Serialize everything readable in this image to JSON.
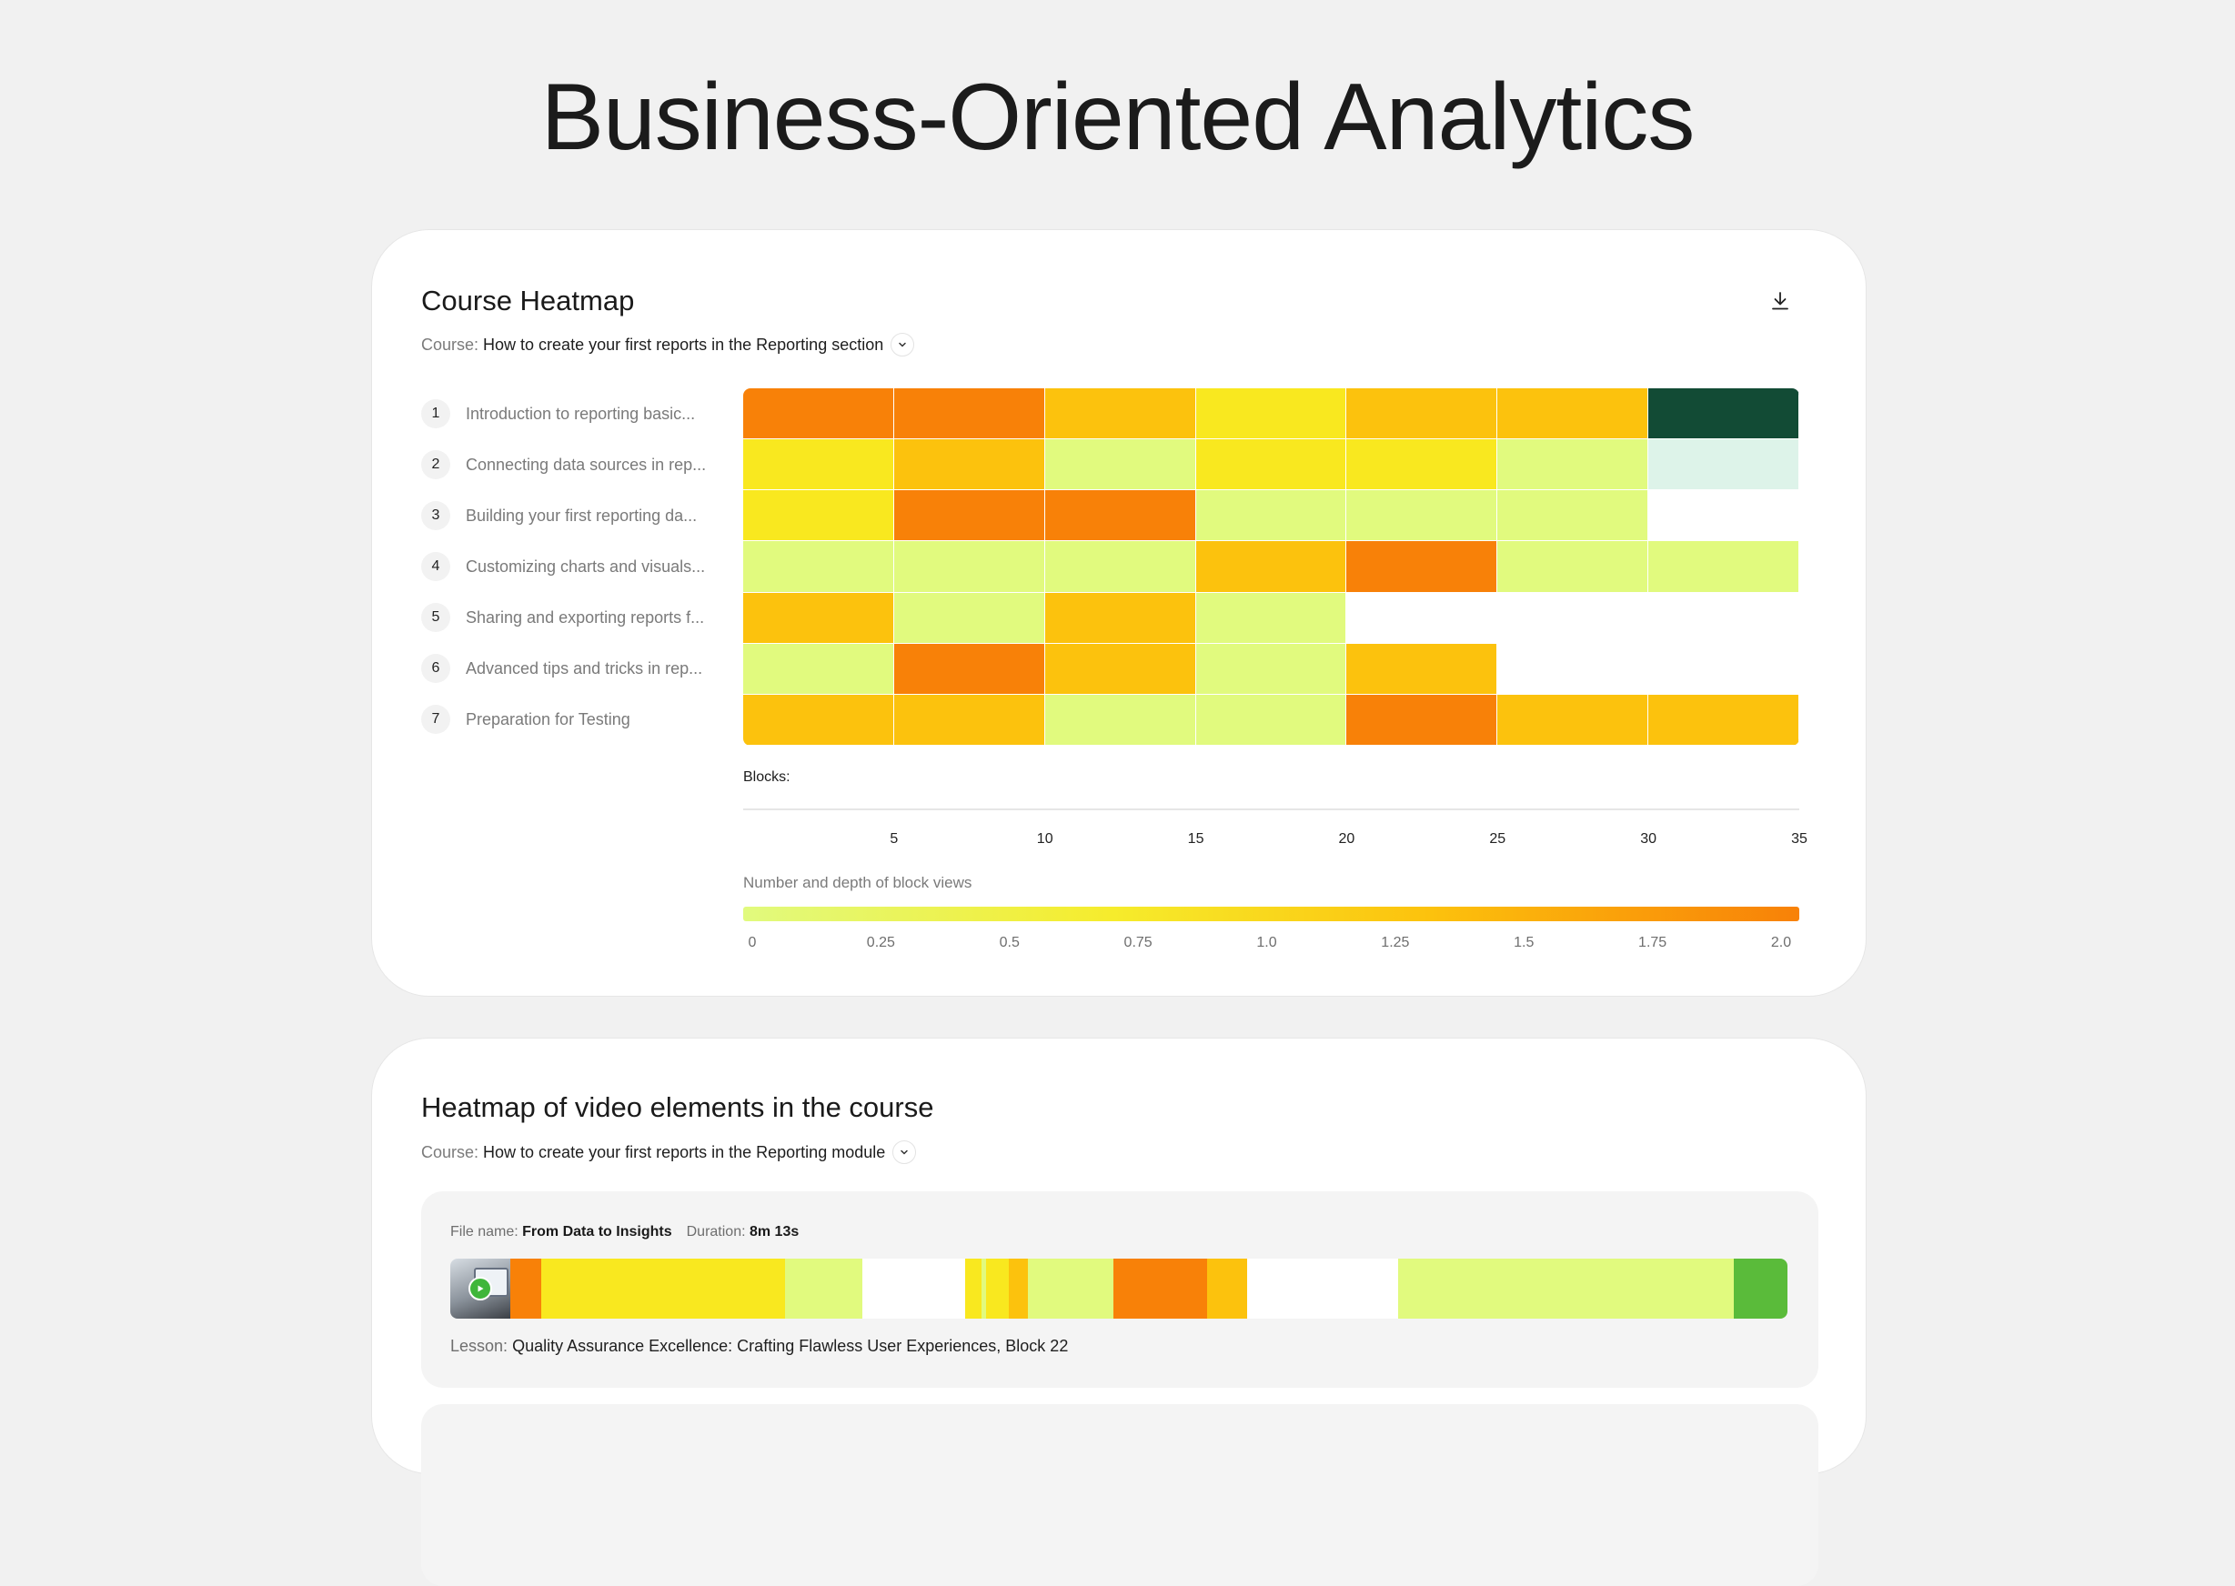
{
  "page": {
    "title": "Business-Oriented Analytics"
  },
  "course_heatmap": {
    "title": "Course Heatmap",
    "course_label": "Course:",
    "course_value": "How to create your first reports in the Reporting section",
    "download_icon": "download-icon",
    "lessons": [
      {
        "num": "1",
        "label": "Introduction to reporting basic..."
      },
      {
        "num": "2",
        "label": "Connecting data sources in rep..."
      },
      {
        "num": "3",
        "label": "Building your first reporting da..."
      },
      {
        "num": "4",
        "label": "Customizing charts and visuals..."
      },
      {
        "num": "5",
        "label": "Sharing and exporting reports f..."
      },
      {
        "num": "6",
        "label": "Advanced tips and tricks in rep..."
      },
      {
        "num": "7",
        "label": "Preparation for Testing"
      }
    ],
    "blocks_label": "Blocks:",
    "axis_ticks": [
      "5",
      "10",
      "15",
      "20",
      "25",
      "30",
      "35"
    ],
    "legend_title": "Number and depth of block views",
    "legend_ticks": [
      "0",
      "0.25",
      "0.5",
      "0.75",
      "1.0",
      "1.25",
      "1.5",
      "1.75",
      "2.0"
    ],
    "colors": {
      "orange": "#f88108",
      "amber": "#fcc20d",
      "yellow": "#f9e81f",
      "lime": "#e1fa7e",
      "dark_green": "#124b35",
      "mint": "#ddf3e9",
      "empty": "#ffffff"
    }
  },
  "chart_data": {
    "type": "heatmap",
    "rows": [
      "1",
      "2",
      "3",
      "4",
      "5",
      "6",
      "7"
    ],
    "columns": [
      "5",
      "10",
      "15",
      "20",
      "25",
      "30",
      "35"
    ],
    "cells": [
      [
        "orange",
        "orange",
        "amber",
        "yellow",
        "amber",
        "amber",
        "dark_green"
      ],
      [
        "yellow",
        "amber",
        "lime",
        "yellow",
        "yellow",
        "lime",
        "mint"
      ],
      [
        "yellow",
        "orange",
        "orange",
        "lime",
        "lime",
        "lime",
        "empty"
      ],
      [
        "lime",
        "lime",
        "lime",
        "amber",
        "orange",
        "lime",
        "lime"
      ],
      [
        "amber",
        "lime",
        "amber",
        "lime",
        "empty",
        "empty",
        "empty"
      ],
      [
        "lime",
        "orange",
        "amber",
        "lime",
        "amber",
        "empty",
        "empty"
      ],
      [
        "amber",
        "amber",
        "lime",
        "lime",
        "orange",
        "amber",
        "amber"
      ]
    ],
    "xlabel": "Blocks:",
    "legend": {
      "title": "Number and depth of block views",
      "range": [
        0,
        2.0
      ]
    }
  },
  "video_heatmap": {
    "title": "Heatmap of video elements in the course",
    "course_label": "Course:",
    "course_value": "How to create your first reports in the Reporting module",
    "file_label": "File name:",
    "file_value": "From Data to Insights",
    "duration_label": "Duration:",
    "duration_value": "8m 13s",
    "lesson_label": "Lesson:",
    "lesson_value": "Quality Assurance Excellence: Crafting Flawless User Experiences, Block 22",
    "thumbnail_icon": "video-thumbnail",
    "play_icon": "play-icon",
    "timeline_segments": [
      {
        "from": 0.0,
        "to": 0.045,
        "color": "video-thumb"
      },
      {
        "from": 0.045,
        "to": 0.068,
        "color": "#f88108"
      },
      {
        "from": 0.068,
        "to": 0.25,
        "color": "#f9e81f"
      },
      {
        "from": 0.25,
        "to": 0.308,
        "color": "#e1fa7e"
      },
      {
        "from": 0.308,
        "to": 0.385,
        "color": "#ffffff"
      },
      {
        "from": 0.385,
        "to": 0.397,
        "color": "#f9e81f"
      },
      {
        "from": 0.397,
        "to": 0.401,
        "color": "#e1fa7e"
      },
      {
        "from": 0.401,
        "to": 0.418,
        "color": "#f9e81f"
      },
      {
        "from": 0.418,
        "to": 0.432,
        "color": "#fcc20d"
      },
      {
        "from": 0.432,
        "to": 0.496,
        "color": "#e1fa7e"
      },
      {
        "from": 0.496,
        "to": 0.566,
        "color": "#f88108"
      },
      {
        "from": 0.566,
        "to": 0.596,
        "color": "#fcc20d"
      },
      {
        "from": 0.596,
        "to": 0.709,
        "color": "#ffffff"
      },
      {
        "from": 0.709,
        "to": 0.96,
        "color": "#e1fa7e"
      },
      {
        "from": 0.96,
        "to": 1.0,
        "color": "#5abb3a"
      }
    ]
  }
}
